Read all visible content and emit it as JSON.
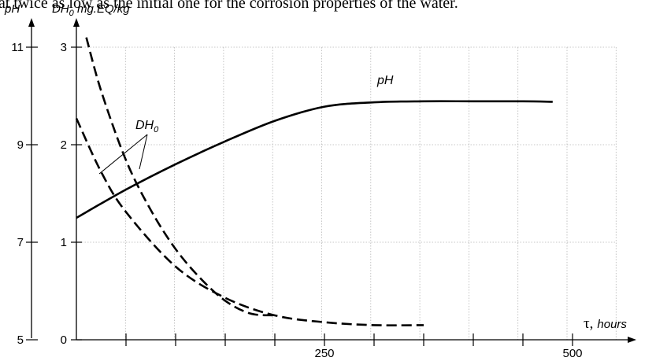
{
  "caption": "at twice as low as the initial one for the corrosion properties of the water.",
  "chart_data": {
    "type": "line",
    "xlabel": "τ, hours",
    "xlabel_symbol": "τ,",
    "xlabel_unit": "hours",
    "xlim": [
      0,
      560
    ],
    "x_ticks": [
      {
        "value": 250,
        "label": "250"
      },
      {
        "value": 500,
        "label": "500"
      }
    ],
    "left_axis": {
      "label": "pH",
      "ylim": [
        5,
        11
      ],
      "ticks": [
        {
          "value": 5,
          "label": "5"
        },
        {
          "value": 7,
          "label": "7"
        },
        {
          "value": 9,
          "label": "9"
        },
        {
          "value": 11,
          "label": "11"
        }
      ]
    },
    "right_axis": {
      "label_main": "DH",
      "label_sub": "0",
      "label_rest": " mg.EQ/kg",
      "ylim": [
        0,
        3
      ],
      "ticks": [
        {
          "value": 0,
          "label": "0"
        },
        {
          "value": 1,
          "label": "1"
        },
        {
          "value": 2,
          "label": "2"
        },
        {
          "value": 3,
          "label": "3"
        }
      ]
    },
    "grid": true,
    "series": [
      {
        "name": "pH",
        "axis": "left",
        "style": "solid",
        "x": [
          0,
          50,
          100,
          150,
          200,
          250,
          300,
          350,
          400,
          450,
          480
        ],
        "y": [
          7.5,
          8.08,
          8.6,
          9.07,
          9.49,
          9.78,
          9.87,
          9.89,
          9.89,
          9.89,
          9.88
        ]
      },
      {
        "name": "DH0",
        "axis": "right",
        "style": "dashed",
        "x": [
          0,
          25,
          50,
          100,
          150,
          200,
          250,
          300,
          350
        ],
        "y": [
          2.27,
          1.72,
          1.31,
          0.75,
          0.43,
          0.25,
          0.18,
          0.15,
          0.15
        ]
      },
      {
        "name": "DH0",
        "axis": "right",
        "style": "dashed",
        "x": [
          10,
          25,
          50,
          75,
          100,
          125,
          150,
          175,
          200
        ],
        "y": [
          3.1,
          2.55,
          1.84,
          1.33,
          0.93,
          0.63,
          0.4,
          0.27,
          0.25
        ]
      }
    ],
    "annotations": [
      {
        "text_main": "DH",
        "text_sub": "0"
      },
      {
        "text": "pH"
      }
    ]
  }
}
